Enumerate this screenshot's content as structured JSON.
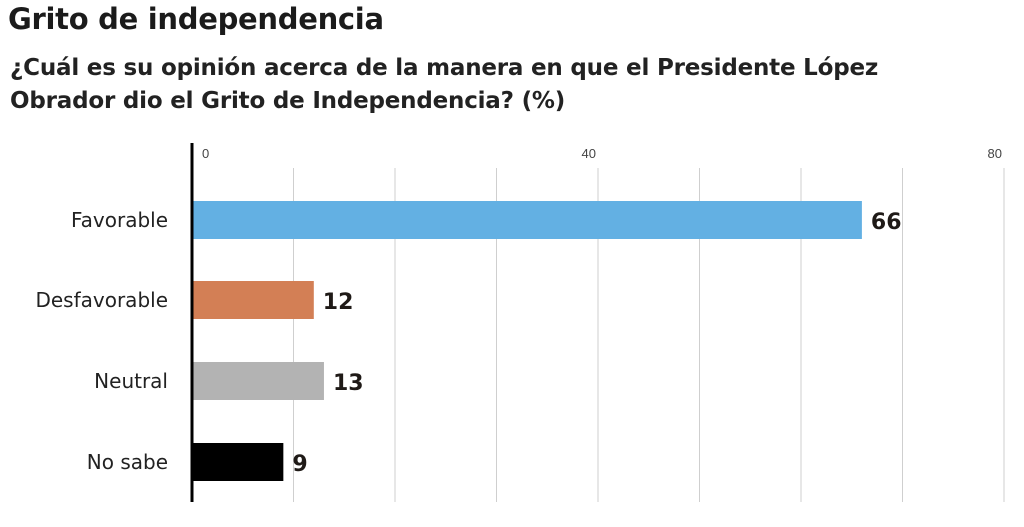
{
  "header": {
    "title": "Grito de independencia",
    "subtitle": "¿Cuál es su opinión acerca de la manera en que el Presidente López Obrador dio el Grito de Independencia? (%)"
  },
  "chart_data": {
    "type": "bar",
    "orientation": "horizontal",
    "title": "Grito de independencia",
    "subtitle": "¿Cuál es su opinión acerca de la manera en que el Presidente López Obrador dio el Grito de Independencia? (%)",
    "categories": [
      "Favorable",
      "Desfavorable",
      "Neutral",
      "No sabe"
    ],
    "values": [
      66,
      12,
      13,
      9
    ],
    "colors": [
      "#63b0e3",
      "#d37f55",
      "#b3b3b3",
      "#000000"
    ],
    "xlabel": "",
    "ylabel": "",
    "xlim": [
      0,
      80
    ],
    "tick_labels": [
      "0",
      "40",
      "80"
    ],
    "tick_values": [
      0,
      40,
      80
    ],
    "grid_step": 10,
    "grid": true,
    "axis_position": "top",
    "legend": "none"
  }
}
